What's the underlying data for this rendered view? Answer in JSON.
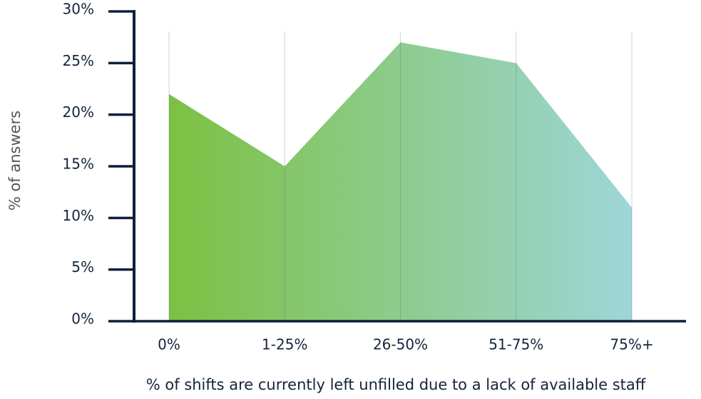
{
  "chart_data": {
    "type": "area",
    "categories": [
      "0%",
      "1-25%",
      "26-50%",
      "51-75%",
      "75%+"
    ],
    "values": [
      22,
      15,
      27,
      25,
      11
    ],
    "color_start": "#7cc142",
    "color_end": "#9dd6d8",
    "ylim": [
      0,
      30
    ],
    "yticks": [
      {
        "value": 0,
        "label": "0%"
      },
      {
        "value": 5,
        "label": "5%"
      },
      {
        "value": 10,
        "label": "10%"
      },
      {
        "value": 15,
        "label": "15%"
      },
      {
        "value": 20,
        "label": "20%"
      },
      {
        "value": 25,
        "label": "25%"
      },
      {
        "value": 30,
        "label": "30%"
      }
    ],
    "y_label": "% of answers",
    "x_label": "% of shifts are currently left unfilled due to a lack of available staff",
    "grid": true
  }
}
